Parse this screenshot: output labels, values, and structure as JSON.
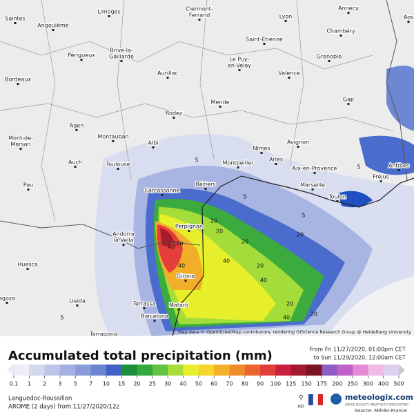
{
  "map": {
    "cities": [
      {
        "lines": [
          "Saintes"
        ]
      },
      {
        "lines": [
          "Angoulême"
        ]
      },
      {
        "lines": [
          "Limoges"
        ]
      },
      {
        "lines": [
          "Clermont-",
          "Ferrand"
        ]
      },
      {
        "lines": [
          "Lyon"
        ]
      },
      {
        "lines": [
          "Annecy"
        ]
      },
      {
        "lines": [
          "Aos"
        ]
      },
      {
        "lines": [
          "Chambéry"
        ]
      },
      {
        "lines": [
          "Saint-Etienne"
        ]
      },
      {
        "lines": [
          "Périgueux"
        ]
      },
      {
        "lines": [
          "Brive-la-",
          "Gaillarde"
        ]
      },
      {
        "lines": [
          "Le Puy-",
          "en-Velay"
        ]
      },
      {
        "lines": [
          "Grenoble"
        ]
      },
      {
        "lines": [
          "Aurillac"
        ]
      },
      {
        "lines": [
          "Bordeaux"
        ]
      },
      {
        "lines": [
          "Valence"
        ]
      },
      {
        "lines": [
          "Rodez"
        ]
      },
      {
        "lines": [
          "Mende"
        ]
      },
      {
        "lines": [
          "Gap"
        ]
      },
      {
        "lines": [
          "Agen"
        ]
      },
      {
        "lines": [
          "Montauban"
        ]
      },
      {
        "lines": [
          "Albi"
        ]
      },
      {
        "lines": [
          "Mont-de-",
          "Marsan"
        ]
      },
      {
        "lines": [
          "Nîmes"
        ]
      },
      {
        "lines": [
          "Avignon"
        ]
      },
      {
        "lines": [
          "Arles"
        ]
      },
      {
        "lines": [
          "Auch"
        ]
      },
      {
        "lines": [
          "Toulouse"
        ]
      },
      {
        "lines": [
          "Montpellier"
        ]
      },
      {
        "lines": [
          "Aix-en-Provence"
        ]
      },
      {
        "lines": [
          "Antibes"
        ]
      },
      {
        "lines": [
          "Fréjus"
        ]
      },
      {
        "lines": [
          "Pau"
        ]
      },
      {
        "lines": [
          "Béziers"
        ]
      },
      {
        "lines": [
          "Carcassonne"
        ]
      },
      {
        "lines": [
          "Marseille"
        ]
      },
      {
        "lines": [
          "Toulon"
        ]
      },
      {
        "lines": [
          "Perpignan"
        ]
      },
      {
        "lines": [
          "Andorra",
          "la Vella"
        ]
      },
      {
        "lines": [
          "Huesca"
        ]
      },
      {
        "lines": [
          "Girona"
        ]
      },
      {
        "lines": [
          "agoza"
        ]
      },
      {
        "lines": [
          "Lleida"
        ]
      },
      {
        "lines": [
          "Terrassa"
        ]
      },
      {
        "lines": [
          "Mataró"
        ]
      },
      {
        "lines": [
          "Barcelona"
        ]
      },
      {
        "lines": [
          "Tarragona"
        ]
      }
    ],
    "contour_labels": [
      "5",
      "5",
      "5",
      "20",
      "20",
      "40",
      "40",
      "100",
      "40",
      "40",
      "20",
      "20",
      "20",
      "20",
      "5",
      "5",
      "40",
      "20"
    ],
    "attribution": "Map data © OpenStreetMap contributors, rendering GIScience Research Group @ Heidelberg University"
  },
  "legend": {
    "title": "Accumulated total precipitation (mm)",
    "period_from": "From Fri 11/27/2020, 01:00pm CET",
    "period_to": "to Sun 11/29/2020, 12:00am CET",
    "labels": [
      "0.1",
      "1",
      "2",
      "3",
      "5",
      "7",
      "10",
      "15",
      "20",
      "25",
      "30",
      "40",
      "50",
      "60",
      "70",
      "80",
      "90",
      "100",
      "125",
      "150",
      "175",
      "200",
      "250",
      "300",
      "400",
      "500"
    ],
    "colors": [
      "#eeeef8",
      "#d4d8ef",
      "#bcc4e8",
      "#a3b0e0",
      "#8a9cd8",
      "#6c84cf",
      "#3f62c4",
      "#1c8f3a",
      "#35a83d",
      "#62c444",
      "#a8dc3a",
      "#e8ef2c",
      "#f6d52c",
      "#f3b02a",
      "#ef8c2a",
      "#ec652f",
      "#e33f3a",
      "#c9203c",
      "#a11a2c",
      "#7a1420",
      "#8f5ec4",
      "#c060c8",
      "#e28ad6",
      "#f1b9e6",
      "#dcd0ee",
      "#c8c8c8"
    ]
  },
  "footer": {
    "region": "Languedoc-Roussillon",
    "model": "AROME (2 days) from 11/27/2020/12z",
    "hd": "HD",
    "brand": "meteologix.com",
    "tagline": "SWISS QUALITY WEATHER FORECASTING",
    "source": "Source: Météo-France"
  }
}
